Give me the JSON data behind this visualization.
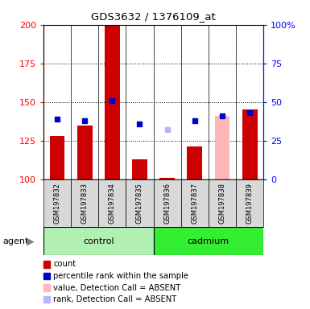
{
  "title": "GDS3632 / 1376109_at",
  "samples": [
    "GSM197832",
    "GSM197833",
    "GSM197834",
    "GSM197835",
    "GSM197836",
    "GSM197837",
    "GSM197838",
    "GSM197839"
  ],
  "bar_heights": [
    128,
    135,
    200,
    113,
    101,
    121,
    100,
    145
  ],
  "bar_color": "#cc0000",
  "bar_absent_heights": [
    null,
    null,
    null,
    null,
    null,
    null,
    141,
    null
  ],
  "bar_absent_color": "#ffb6b6",
  "rank_values": [
    139,
    138,
    151,
    136,
    null,
    138,
    141,
    143
  ],
  "rank_color": "#0000cc",
  "rank_absent_values": [
    null,
    null,
    null,
    null,
    132,
    null,
    null,
    null
  ],
  "rank_absent_color": "#b6b6ff",
  "ylim_left": [
    100,
    200
  ],
  "ylim_right": [
    0,
    100
  ],
  "yticks_left": [
    100,
    125,
    150,
    175,
    200
  ],
  "yticks_right": [
    0,
    25,
    50,
    75,
    100
  ],
  "ytick_labels_left": [
    "100",
    "125",
    "150",
    "175",
    "200"
  ],
  "ytick_labels_right": [
    "0",
    "25",
    "50",
    "75",
    "100%"
  ],
  "bar_baseline": 100,
  "bar_width": 0.55,
  "control_color": "#b2f0b2",
  "cadmium_color": "#33ee33",
  "label_box_color": "#d8d8d8",
  "plot_bg": "#ffffff",
  "legend_items": [
    {
      "color": "#cc0000",
      "label": "count"
    },
    {
      "color": "#0000cc",
      "label": "percentile rank within the sample"
    },
    {
      "color": "#ffb6b6",
      "label": "value, Detection Call = ABSENT"
    },
    {
      "color": "#b6b6ff",
      "label": "rank, Detection Call = ABSENT"
    }
  ]
}
